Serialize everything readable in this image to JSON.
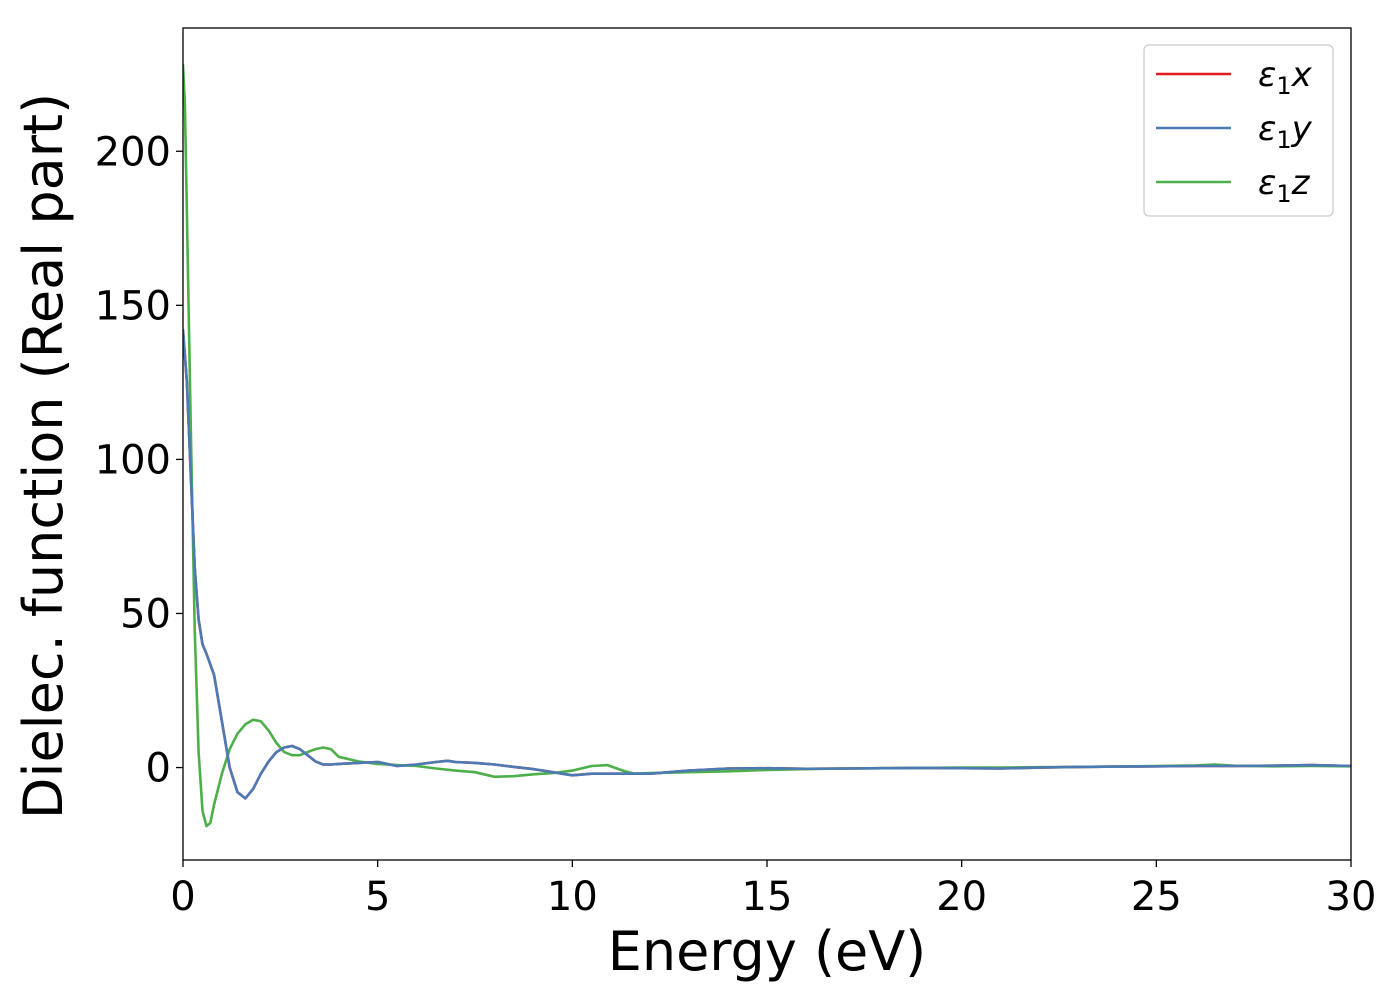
{
  "chart_data": {
    "type": "line",
    "title": "",
    "xlabel": "Energy (eV)",
    "ylabel": "Dielec. function (Real part)",
    "xlim": [
      0,
      30
    ],
    "ylim": [
      -30,
      240
    ],
    "xticks": [
      0,
      5,
      10,
      15,
      20,
      25,
      30
    ],
    "yticks": [
      0,
      50,
      100,
      150,
      200
    ],
    "grid": false,
    "legend_position": "top-right",
    "series": [
      {
        "name": "ε1x",
        "label_main": "ε",
        "label_sub": "1",
        "label_tail": "x",
        "color": "#e41a1c",
        "x": [
          0,
          0.1,
          0.2,
          0.3,
          0.4,
          0.5,
          0.6,
          0.8,
          1.0,
          1.2,
          1.4,
          1.6,
          1.8,
          2.0,
          2.2,
          2.4,
          2.6,
          2.8,
          3.0,
          3.2,
          3.4,
          3.6,
          3.8,
          4.0,
          4.5,
          5.0,
          5.5,
          6.0,
          6.5,
          6.8,
          7.0,
          7.5,
          8.0,
          8.5,
          9.0,
          9.5,
          10.0,
          10.5,
          11.0,
          12.0,
          13.0,
          14.0,
          15.0,
          16.0,
          17.0,
          18.0,
          19.0,
          20.0,
          21.0,
          22.0,
          23.0,
          24.0,
          25.0,
          26.0,
          27.0,
          28.0,
          29.0,
          30.0
        ],
        "y": [
          142,
          125,
          95,
          65,
          48,
          40,
          37,
          30,
          15,
          0,
          -8,
          -10,
          -7,
          -2,
          2,
          5,
          6.5,
          7,
          6,
          4,
          2,
          1,
          1,
          1.2,
          1.5,
          1.8,
          0.5,
          1,
          1.8,
          2.2,
          1.8,
          1.5,
          1.0,
          0.2,
          -0.5,
          -1.5,
          -2.5,
          -2,
          -2,
          -2,
          -1,
          -0.3,
          -0.2,
          -0.4,
          -0.3,
          -0.2,
          -0.1,
          -0.2,
          -0.3,
          0,
          0.2,
          0.3,
          0.4,
          0.5,
          0.5,
          0.6,
          0.8,
          0.5
        ]
      },
      {
        "name": "ε1y",
        "label_main": "ε",
        "label_sub": "1",
        "label_tail": "y",
        "color": "#4a7bb5",
        "x": [
          0,
          0.1,
          0.2,
          0.3,
          0.4,
          0.5,
          0.6,
          0.8,
          1.0,
          1.2,
          1.4,
          1.6,
          1.8,
          2.0,
          2.2,
          2.4,
          2.6,
          2.8,
          3.0,
          3.2,
          3.4,
          3.6,
          3.8,
          4.0,
          4.5,
          5.0,
          5.5,
          6.0,
          6.5,
          6.8,
          7.0,
          7.5,
          8.0,
          8.5,
          9.0,
          9.5,
          10.0,
          10.5,
          11.0,
          12.0,
          13.0,
          14.0,
          15.0,
          16.0,
          17.0,
          18.0,
          19.0,
          20.0,
          21.0,
          22.0,
          23.0,
          24.0,
          25.0,
          26.0,
          27.0,
          28.0,
          29.0,
          30.0
        ],
        "y": [
          142,
          125,
          95,
          65,
          48,
          40,
          37,
          30,
          15,
          0,
          -8,
          -10,
          -7,
          -2,
          2,
          5,
          6.5,
          7,
          6,
          4,
          2,
          1,
          1,
          1.2,
          1.5,
          1.8,
          0.5,
          1,
          1.8,
          2.2,
          1.8,
          1.5,
          1.0,
          0.2,
          -0.5,
          -1.5,
          -2.5,
          -2,
          -2,
          -2,
          -1,
          -0.3,
          -0.2,
          -0.4,
          -0.3,
          -0.2,
          -0.1,
          -0.2,
          -0.3,
          0,
          0.2,
          0.3,
          0.4,
          0.5,
          0.5,
          0.6,
          0.8,
          0.5
        ]
      },
      {
        "name": "ε1z",
        "label_main": "ε",
        "label_sub": "1",
        "label_tail": "z",
        "color": "#4daf4a",
        "x": [
          0,
          0.05,
          0.1,
          0.2,
          0.3,
          0.4,
          0.5,
          0.6,
          0.7,
          0.8,
          1.0,
          1.2,
          1.4,
          1.6,
          1.8,
          2.0,
          2.2,
          2.4,
          2.6,
          2.8,
          3.0,
          3.2,
          3.4,
          3.6,
          3.8,
          4.0,
          4.5,
          5.0,
          5.5,
          6.0,
          6.5,
          7.0,
          7.5,
          8.0,
          8.5,
          9.0,
          9.5,
          10.0,
          10.5,
          10.9,
          11.3,
          11.6,
          12.0,
          13.0,
          14.0,
          15.0,
          16.0,
          17.0,
          18.0,
          19.0,
          20.0,
          21.0,
          22.0,
          23.0,
          24.0,
          25.0,
          26.0,
          26.5,
          27.0,
          28.0,
          29.0,
          30.0
        ],
        "y": [
          228,
          215,
          180,
          110,
          45,
          5,
          -14,
          -19,
          -18,
          -12,
          -2,
          6,
          11,
          14,
          15.5,
          15,
          12,
          8,
          5,
          4,
          4,
          5,
          6,
          6.5,
          6,
          3.5,
          2,
          1.2,
          0.8,
          0.5,
          -0.3,
          -1,
          -1.5,
          -3,
          -2.8,
          -2.2,
          -1.8,
          -1,
          0.5,
          0.8,
          -1,
          -2,
          -1.8,
          -1.5,
          -1.2,
          -0.8,
          -0.5,
          -0.3,
          -0.2,
          -0.1,
          0,
          0,
          0.1,
          0.2,
          0.3,
          0.5,
          0.7,
          1.0,
          0.6,
          0.4,
          0.5,
          0.4
        ]
      }
    ]
  }
}
